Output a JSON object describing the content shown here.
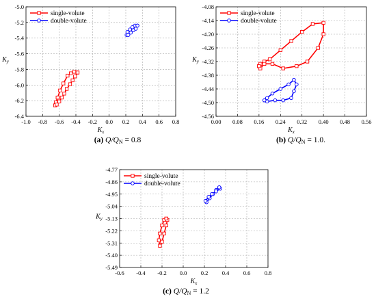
{
  "chart_data": [
    {
      "type": "line",
      "caption_letter": "(a)",
      "caption_formula": "Q/QN = 0.8",
      "xlabel": "Kx",
      "ylabel": "Ky",
      "xlim": [
        -1.0,
        0.8
      ],
      "ylim": [
        -6.4,
        -5.0
      ],
      "xticks": [
        "-1.0",
        "-0.8",
        "-0.6",
        "-0.4",
        "-0.2",
        "0.0",
        "0.2",
        "0.4",
        "0.6",
        "0.8"
      ],
      "yticks": [
        "-6.4",
        "-6.2",
        "-6.0",
        "-5.8",
        "-5.6",
        "-5.4",
        "-5.2",
        "-5.0"
      ],
      "grid": true,
      "legend_position": "top-left",
      "series": [
        {
          "name": "single-volute",
          "color": "#ff0000",
          "marker": "square",
          "points": [
            [
              -0.38,
              -5.84
            ],
            [
              -0.42,
              -5.83
            ],
            [
              -0.46,
              -5.85
            ],
            [
              -0.5,
              -5.88
            ],
            [
              -0.55,
              -5.98
            ],
            [
              -0.59,
              -6.07
            ],
            [
              -0.62,
              -6.16
            ],
            [
              -0.64,
              -6.22
            ],
            [
              -0.65,
              -6.26
            ],
            [
              -0.63,
              -6.25
            ],
            [
              -0.6,
              -6.21
            ],
            [
              -0.57,
              -6.16
            ],
            [
              -0.54,
              -6.11
            ],
            [
              -0.51,
              -6.05
            ],
            [
              -0.47,
              -5.99
            ],
            [
              -0.44,
              -5.94
            ],
            [
              -0.41,
              -5.89
            ],
            [
              -0.38,
              -5.84
            ]
          ]
        },
        {
          "name": "double-volute",
          "color": "#0000ff",
          "marker": "circle",
          "points": [
            [
              0.34,
              -5.24
            ],
            [
              0.31,
              -5.24
            ],
            [
              0.28,
              -5.26
            ],
            [
              0.25,
              -5.29
            ],
            [
              0.22,
              -5.32
            ],
            [
              0.21,
              -5.36
            ],
            [
              0.23,
              -5.36
            ],
            [
              0.26,
              -5.33
            ],
            [
              0.29,
              -5.3
            ],
            [
              0.32,
              -5.28
            ],
            [
              0.34,
              -5.24
            ]
          ]
        }
      ]
    },
    {
      "type": "line",
      "caption_letter": "(b)",
      "caption_formula": "Q/QN = 1.0.",
      "xlabel": "Kx",
      "ylabel": "Ky",
      "xlim": [
        0.0,
        0.56
      ],
      "ylim": [
        -4.56,
        -4.08
      ],
      "xticks": [
        "0.00",
        "0.08",
        "0.16",
        "0.24",
        "0.32",
        "0.40",
        "0.48",
        "0.56"
      ],
      "yticks": [
        "-4.56",
        "-4.50",
        "-4.44",
        "-4.38",
        "-4.32",
        "-4.26",
        "-4.20",
        "-4.14",
        "-4.08"
      ],
      "grid": true,
      "legend_position": "top-left",
      "series": [
        {
          "name": "single-volute",
          "color": "#ff0000",
          "marker": "square",
          "points": [
            [
              0.16,
              -4.34
            ],
            [
              0.165,
              -4.33
            ],
            [
              0.18,
              -4.32
            ],
            [
              0.2,
              -4.31
            ],
            [
              0.24,
              -4.27
            ],
            [
              0.28,
              -4.23
            ],
            [
              0.32,
              -4.19
            ],
            [
              0.36,
              -4.155
            ],
            [
              0.4,
              -4.15
            ],
            [
              0.4,
              -4.2
            ],
            [
              0.38,
              -4.26
            ],
            [
              0.34,
              -4.32
            ],
            [
              0.3,
              -4.34
            ],
            [
              0.25,
              -4.35
            ],
            [
              0.21,
              -4.33
            ],
            [
              0.18,
              -4.33
            ],
            [
              0.165,
              -4.35
            ],
            [
              0.16,
              -4.34
            ]
          ]
        },
        {
          "name": "double-volute",
          "color": "#0000ff",
          "marker": "circle",
          "points": [
            [
              0.18,
              -4.49
            ],
            [
              0.19,
              -4.48
            ],
            [
              0.21,
              -4.46
            ],
            [
              0.24,
              -4.44
            ],
            [
              0.27,
              -4.42
            ],
            [
              0.29,
              -4.4
            ],
            [
              0.3,
              -4.42
            ],
            [
              0.29,
              -4.45
            ],
            [
              0.28,
              -4.48
            ],
            [
              0.25,
              -4.49
            ],
            [
              0.22,
              -4.49
            ],
            [
              0.19,
              -4.495
            ],
            [
              0.18,
              -4.49
            ]
          ]
        }
      ]
    },
    {
      "type": "line",
      "caption_letter": "(c)",
      "caption_formula": "Q/QN = 1.2",
      "xlabel": "Kx",
      "ylabel": "Ky",
      "xlim": [
        -0.6,
        0.8
      ],
      "ylim": [
        -5.49,
        -4.77
      ],
      "xticks": [
        "-0.6",
        "-0.4",
        "-0.2",
        "0.0",
        "0.2",
        "0.4",
        "0.6",
        "0.8"
      ],
      "yticks": [
        "-5.49",
        "-5.40",
        "-5.31",
        "-5.22",
        "-5.13",
        "-5.04",
        "-4.95",
        "-4.86",
        "-4.77"
      ],
      "grid": true,
      "legend_position": "top-left",
      "series": [
        {
          "name": "single-volute",
          "color": "#ff0000",
          "marker": "square",
          "points": [
            [
              -0.16,
              -5.13
            ],
            [
              -0.18,
              -5.14
            ],
            [
              -0.2,
              -5.18
            ],
            [
              -0.22,
              -5.24
            ],
            [
              -0.23,
              -5.29
            ],
            [
              -0.22,
              -5.33
            ],
            [
              -0.2,
              -5.3
            ],
            [
              -0.18,
              -5.24
            ],
            [
              -0.16,
              -5.18
            ],
            [
              -0.15,
              -5.14
            ],
            [
              -0.16,
              -5.13
            ]
          ]
        },
        {
          "name": "double-volute",
          "color": "#0000ff",
          "marker": "circle",
          "points": [
            [
              0.34,
              -4.9
            ],
            [
              0.31,
              -4.92
            ],
            [
              0.28,
              -4.95
            ],
            [
              0.25,
              -4.98
            ],
            [
              0.22,
              -5.01
            ],
            [
              0.21,
              -5.0
            ],
            [
              0.24,
              -4.97
            ],
            [
              0.27,
              -4.95
            ],
            [
              0.31,
              -4.93
            ],
            [
              0.35,
              -4.91
            ],
            [
              0.34,
              -4.9
            ]
          ]
        }
      ]
    }
  ]
}
